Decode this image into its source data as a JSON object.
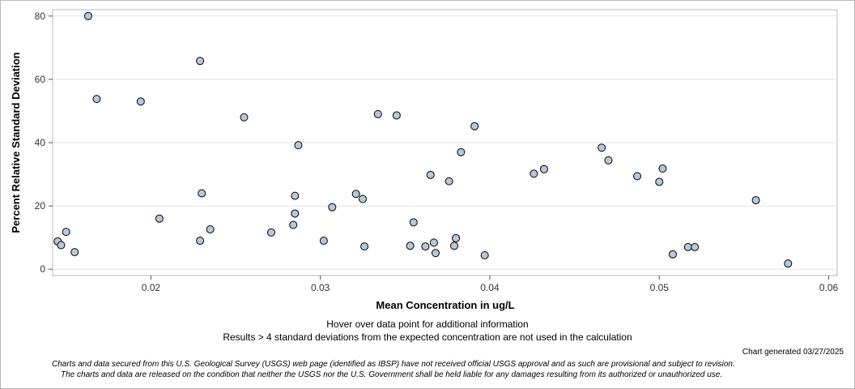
{
  "chart_data": {
    "type": "scatter",
    "title": "",
    "xlabel": "Mean Concentration in ug/L",
    "ylabel": "Percent Relative Standard Deviation",
    "xlim": [
      0.0142,
      0.0605
    ],
    "ylim": [
      -2,
      82
    ],
    "x_ticks": [
      0.02,
      0.03,
      0.04,
      0.05,
      0.06
    ],
    "x_tick_labels": [
      "0.02",
      "0.03",
      "0.04",
      "0.05",
      "0.06"
    ],
    "y_ticks": [
      0,
      20,
      40,
      60,
      80
    ],
    "y_tick_labels": [
      "0",
      "20",
      "40",
      "60",
      "80"
    ],
    "grid": "horizontal",
    "legend": "none",
    "marker_fill": "#b9c7d8",
    "marker_stroke": "#000000",
    "series": [
      {
        "points": [
          [
            0.0145,
            8.8
          ],
          [
            0.0147,
            7.6
          ],
          [
            0.015,
            11.8
          ],
          [
            0.0155,
            5.4
          ],
          [
            0.0163,
            80.0
          ],
          [
            0.0168,
            53.8
          ],
          [
            0.0194,
            53.0
          ],
          [
            0.0205,
            16.0
          ],
          [
            0.0229,
            65.8
          ],
          [
            0.023,
            24.0
          ],
          [
            0.0229,
            9.0
          ],
          [
            0.0235,
            12.6
          ],
          [
            0.0255,
            48.0
          ],
          [
            0.0271,
            11.6
          ],
          [
            0.0285,
            23.2
          ],
          [
            0.0285,
            17.6
          ],
          [
            0.0284,
            14.0
          ],
          [
            0.0287,
            39.2
          ],
          [
            0.0302,
            9.0
          ],
          [
            0.0307,
            19.6
          ],
          [
            0.0321,
            23.8
          ],
          [
            0.0325,
            22.2
          ],
          [
            0.0326,
            7.2
          ],
          [
            0.0334,
            49.0
          ],
          [
            0.0345,
            48.6
          ],
          [
            0.0353,
            7.4
          ],
          [
            0.0355,
            14.8
          ],
          [
            0.0362,
            7.2
          ],
          [
            0.0365,
            29.8
          ],
          [
            0.0367,
            8.4
          ],
          [
            0.0368,
            5.1
          ],
          [
            0.0376,
            27.8
          ],
          [
            0.038,
            9.8
          ],
          [
            0.0379,
            7.4
          ],
          [
            0.0383,
            37.0
          ],
          [
            0.0391,
            45.2
          ],
          [
            0.0397,
            4.4
          ],
          [
            0.0426,
            30.2
          ],
          [
            0.0432,
            31.6
          ],
          [
            0.0466,
            38.4
          ],
          [
            0.047,
            34.4
          ],
          [
            0.0487,
            29.4
          ],
          [
            0.05,
            27.6
          ],
          [
            0.0502,
            31.8
          ],
          [
            0.0508,
            4.7
          ],
          [
            0.0517,
            7.0
          ],
          [
            0.0521,
            7.0
          ],
          [
            0.0557,
            21.8
          ],
          [
            0.0576,
            1.8
          ]
        ]
      }
    ]
  },
  "notes": {
    "hover": "Hover over data point for additional information",
    "results": "Results > 4 standard deviations from the expected concentration are not used in the calculation",
    "generated": "Chart generated 03/27/2025",
    "disclaimer_1": "Charts and data secured from this U.S. Geological Survey (USGS) web page (identified as IBSP) have not received official USGS approval and as such are provisional and subject to revision.",
    "disclaimer_2": "The charts and data are released on the condition that neither the USGS nor the U.S. Government shall be held liable for any damages resulting from its authorized or unauthorized use."
  }
}
